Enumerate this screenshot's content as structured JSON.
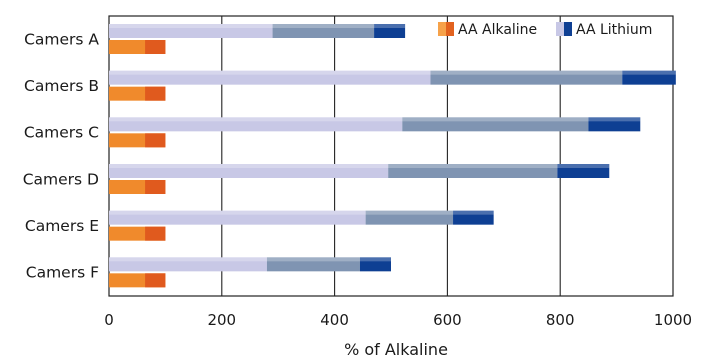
{
  "chart_data": {
    "type": "bar",
    "orientation": "horizontal",
    "stacked": true,
    "categories": [
      "Camers A",
      "Camers B",
      "Camers C",
      "Camers D",
      "Camers E",
      "Camers F"
    ],
    "series": [
      {
        "name": "AA Alkaline",
        "values": [
          100,
          100,
          100,
          100,
          100,
          100
        ],
        "color": "#f08a2c"
      },
      {
        "name": "AA Lithium",
        "segments": [
          {
            "values": [
              290,
              570,
              520,
              495,
              455,
              280
            ],
            "color": "#c8c8e6"
          },
          {
            "values": [
              180,
              340,
              330,
              300,
              155,
              165
            ],
            "color": "#7f94b2"
          },
          {
            "values": [
              55,
              95,
              92,
              92,
              72,
              55
            ],
            "color": "#0e3f93"
          }
        ]
      }
    ],
    "xlabel": "%  of Alkaline",
    "ylabel": "",
    "xlim": [
      0,
      1000
    ],
    "xticks": [
      0,
      200,
      400,
      600,
      800,
      1000
    ],
    "grid": "vertical",
    "legend": "top-right"
  }
}
